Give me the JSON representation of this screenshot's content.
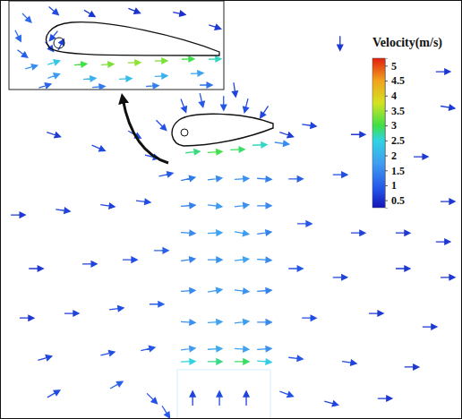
{
  "chart_data": [
    {
      "type": "quiver",
      "xlim": [
        0,
        100
      ],
      "ylim": [
        0,
        100
      ],
      "tick_labels": false,
      "x": [
        73.6,
        96.9,
        50.8,
        95.9,
        11.6,
        21.3,
        29.1,
        34.9,
        39.7,
        43.6,
        48.4,
        53.3,
        57.2,
        62.0,
        66.9,
        77.5,
        91.1,
        32.9,
        35.9,
        41.7,
        46.5,
        51.4,
        56.2,
        61.0,
        3.9,
        13.6,
        23.3,
        31.0,
        7.8,
        19.4,
        28.1,
        34.9,
        5.8,
        15.5,
        25.2,
        33.9,
        9.7,
        23.3,
        32.0,
        11.6,
        25.2,
        32.9,
        35.9,
        40.7,
        46.5,
        52.3,
        57.2,
        40.7,
        46.5,
        52.3,
        57.2,
        40.7,
        46.5,
        52.3,
        57.2,
        40.7,
        46.5,
        52.3,
        57.2,
        40.7,
        46.5,
        52.3,
        57.2,
        40.7,
        46.5,
        52.3,
        57.2,
        40.7,
        46.5,
        52.3,
        57.2,
        64.0,
        73.6,
        87.2,
        96.9,
        65.9,
        77.5,
        95.9,
        64.0,
        73.6,
        87.2,
        96.9,
        66.9,
        81.4,
        93.0,
        64.0,
        75.6,
        89.1,
        62.0,
        71.7,
        83.3,
        40.7,
        46.5,
        52.3,
        57.2,
        41.7,
        47.5,
        53.3
      ],
      "y": [
        89.7,
        74.4,
        78.6,
        82.9,
        67.9,
        64.7,
        67.9,
        70.1,
        74.8,
        76.1,
        75.4,
        74.8,
        73.3,
        67.9,
        70.1,
        67.9,
        62.6,
        62.6,
        58.3,
        63.7,
        63.7,
        64.3,
        65.4,
        65.8,
        48.7,
        49.8,
        50.9,
        51.9,
        35.9,
        37.0,
        38.0,
        40.2,
        24.1,
        25.2,
        26.3,
        27.4,
        14.5,
        15.6,
        16.7,
        6.0,
        8.1,
        4.9,
        1.7,
        57.3,
        57.3,
        57.3,
        57.3,
        50.9,
        50.9,
        50.9,
        50.9,
        44.4,
        44.4,
        44.4,
        44.4,
        38.0,
        38.0,
        38.0,
        38.0,
        30.6,
        30.6,
        30.6,
        30.6,
        23.1,
        23.1,
        23.1,
        23.1,
        16.7,
        16.7,
        16.7,
        16.7,
        57.3,
        58.3,
        44.4,
        51.9,
        46.6,
        44.4,
        42.3,
        35.9,
        33.8,
        35.9,
        33.8,
        24.1,
        25.2,
        22.0,
        14.5,
        13.5,
        12.4,
        6.0,
        3.8,
        4.9,
        13.7,
        13.7,
        13.7,
        13.7,
        4.9,
        4.9,
        4.9
      ],
      "u": [
        0,
        0.6,
        0.1,
        0.6,
        0.6,
        0.7,
        0.7,
        0.6,
        0.3,
        0.2,
        0,
        -0.2,
        -0.4,
        0.6,
        0.7,
        0.6,
        0.6,
        0.8,
        0.9,
        2.8,
        3.0,
        2.9,
        2.6,
        1.5,
        0.6,
        0.7,
        0.7,
        0.8,
        0.6,
        0.7,
        0.8,
        1.0,
        0.6,
        0.7,
        0.8,
        1.0,
        0.7,
        0.8,
        0.9,
        0.7,
        0.9,
        0.6,
        0.5,
        1.3,
        1.5,
        1.6,
        1.4,
        1.4,
        1.7,
        1.6,
        1.5,
        1.5,
        1.8,
        1.7,
        1.4,
        1.4,
        1.6,
        1.8,
        1.5,
        1.5,
        1.7,
        1.6,
        1.4,
        1.6,
        1.8,
        1.7,
        1.5,
        1.7,
        1.9,
        1.8,
        1.6,
        1.0,
        0.8,
        0.6,
        0.6,
        0.9,
        0.7,
        0.6,
        0.9,
        0.7,
        0.6,
        0.6,
        0.8,
        0.6,
        0.6,
        0.9,
        0.7,
        0.6,
        0.8,
        0.7,
        0.6,
        2.5,
        2.8,
        2.9,
        2.4,
        0,
        0,
        0
      ],
      "v": [
        -0.6,
        -0.1,
        -0.7,
        0,
        -0.2,
        -0.3,
        -0.4,
        -0.6,
        -0.8,
        -0.9,
        -0.9,
        -0.8,
        -0.6,
        -0.2,
        -0.1,
        0,
        0,
        -0.2,
        0.2,
        0.3,
        0.2,
        0.1,
        0.1,
        -0.2,
        0,
        -0.1,
        -0.1,
        -0.1,
        0,
        0,
        0,
        0,
        0,
        0,
        0.1,
        0,
        0.2,
        0.2,
        0.2,
        0.4,
        0.5,
        -0.6,
        -0.8,
        0.3,
        0.2,
        0.1,
        -0.1,
        0.1,
        -0.2,
        0.2,
        0,
        -0.1,
        0.1,
        -0.3,
        0.2,
        0.2,
        0,
        0.2,
        -0.1,
        0.1,
        0.3,
        -0.2,
        0.1,
        -0.1,
        0.1,
        0.2,
        0,
        0.2,
        0.1,
        -0.1,
        0.1,
        0,
        0,
        0,
        0,
        0,
        0,
        0,
        0,
        0,
        0,
        0,
        0,
        0,
        0,
        -0.1,
        -0.1,
        0,
        -0.3,
        -0.2,
        0,
        0.1,
        0,
        0,
        -0.2,
        0.7,
        0.8,
        0.7
      ],
      "colorbar": {
        "title": "Velocity(m/s)",
        "range": [
          0.25,
          5.25
        ],
        "ticks": [
          0.5,
          1,
          1.5,
          2,
          2.5,
          3,
          3.5,
          4,
          4.5,
          5
        ]
      }
    },
    {
      "type": "quiver",
      "xlim": [
        0,
        100
      ],
      "ylim": [
        0,
        100
      ],
      "tick_labels": false,
      "x": [
        8.3,
        20.8,
        37.5,
        58.3,
        79.2,
        95.8,
        4.2,
        6.3,
        10.4,
        20.8,
        18.8,
        24.2,
        20.8,
        33.3,
        45.8,
        58.3,
        70.8,
        83.3,
        95.8,
        20.8,
        37.5,
        54.2,
        70.8,
        87.5,
        16.7,
        41.7,
        66.7,
        91.7
      ],
      "y": [
        80,
        88,
        85,
        88,
        85,
        70,
        60,
        40,
        25,
        60,
        48,
        50,
        30,
        28,
        28,
        30,
        32,
        34,
        34,
        15,
        12,
        12,
        15,
        18,
        4,
        3,
        4,
        5
      ],
      "u": [
        0.8,
        0.6,
        0.5,
        0.5,
        0.5,
        0.6,
        0.5,
        0.8,
        1.5,
        -0.5,
        0.5,
        0.3,
        2.2,
        3.0,
        3.3,
        3.4,
        3.3,
        3.0,
        2.6,
        1.6,
        2.0,
        2.2,
        2.0,
        1.8,
        1.0,
        1.3,
        1.4,
        1.2
      ],
      "v": [
        -0.8,
        -0.5,
        -0.3,
        -0.2,
        -0.1,
        -0.2,
        -1.0,
        -0.6,
        0.4,
        -0.6,
        -0.6,
        0.6,
        0.7,
        0.3,
        0.2,
        0.1,
        0.1,
        0.1,
        0.1,
        0.6,
        0.2,
        0.1,
        0.1,
        0.1,
        0.3,
        0.1,
        0.1,
        0
      ]
    }
  ]
}
